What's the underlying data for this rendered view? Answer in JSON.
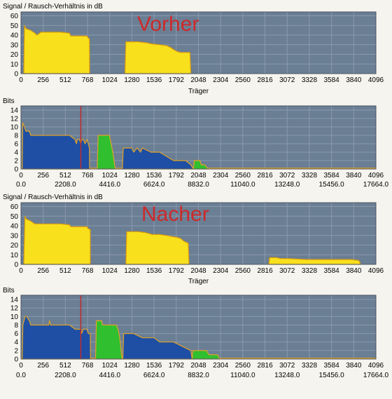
{
  "chart_data": [
    {
      "type": "area",
      "title": "Signal / Rausch-Verhältnis in dB",
      "annotation": "Vorher",
      "xlabel": "Träger",
      "x_ticks": [
        "0",
        "256",
        "512",
        "768",
        "1024",
        "1280",
        "1536",
        "1792",
        "2048",
        "2304",
        "2560",
        "2816",
        "3072",
        "3328",
        "3584",
        "3840",
        "4096"
      ],
      "y_ticks": [
        "0",
        "10",
        "20",
        "30",
        "40",
        "50",
        "60"
      ],
      "xlim": [
        0,
        4096
      ],
      "ylim": [
        0,
        64
      ],
      "series": [
        {
          "points": [
            [
              32,
              0
            ],
            [
              40,
              50
            ],
            [
              55,
              47
            ],
            [
              75,
              46
            ],
            [
              110,
              45
            ],
            [
              160,
              42
            ],
            [
              185,
              40
            ],
            [
              230,
              43
            ],
            [
              330,
              43
            ],
            [
              460,
              43
            ],
            [
              560,
              42
            ],
            [
              575,
              39
            ],
            [
              650,
              39
            ],
            [
              760,
              39
            ],
            [
              776,
              37
            ],
            [
              790,
              36
            ],
            [
              792,
              0
            ]
          ]
        },
        {
          "points": [
            [
              1200,
              0
            ],
            [
              1210,
              33
            ],
            [
              1350,
              33
            ],
            [
              1450,
              32
            ],
            [
              1500,
              31
            ],
            [
              1600,
              30
            ],
            [
              1680,
              29
            ],
            [
              1730,
              27
            ],
            [
              1760,
              25
            ],
            [
              1800,
              23
            ],
            [
              1840,
              22
            ],
            [
              1950,
              22
            ],
            [
              1960,
              0
            ]
          ]
        }
      ],
      "colors": {
        "fill": "#f8e01d",
        "edge": "#d99a0e",
        "plot_bg": "#6a7e94",
        "grid": "#8b9aad"
      },
      "grid": true
    },
    {
      "type": "area",
      "title": "Bits",
      "x_ticks": [
        "0",
        "256",
        "512",
        "768",
        "1024",
        "1280",
        "1536",
        "1792",
        "2048",
        "2304",
        "2560",
        "2816",
        "3072",
        "3328",
        "3584",
        "3840",
        "4096"
      ],
      "x2_ticks": [
        "0.0",
        "2208.0",
        "4416.0",
        "6624.0",
        "8832.0",
        "11040.0",
        "13248.0",
        "15456.0",
        "17664.0"
      ],
      "y_ticks": [
        "0",
        "2",
        "4",
        "6",
        "8",
        "10",
        "12",
        "14"
      ],
      "xlim": [
        0,
        4096
      ],
      "ylim": [
        0,
        15
      ],
      "marker_x": 690,
      "segments": [
        {
          "color": "#1e4fa4",
          "points": [
            [
              14,
              0
            ],
            [
              20,
              11
            ],
            [
              40,
              10
            ],
            [
              56,
              9
            ],
            [
              96,
              9
            ],
            [
              112,
              8
            ],
            [
              224,
              8
            ],
            [
              400,
              8
            ],
            [
              560,
              8
            ],
            [
              624,
              7
            ],
            [
              640,
              6
            ],
            [
              650,
              7
            ],
            [
              675,
              7
            ],
            [
              690,
              6
            ],
            [
              700,
              7
            ],
            [
              720,
              7
            ],
            [
              740,
              6
            ],
            [
              760,
              7
            ],
            [
              776,
              6
            ],
            [
              790,
              5
            ],
            [
              792,
              0
            ]
          ]
        },
        {
          "color": "#2fbf2f",
          "points": [
            [
              880,
              0
            ],
            [
              890,
              8
            ],
            [
              1020,
              8
            ],
            [
              1030,
              7
            ],
            [
              1050,
              5
            ],
            [
              1060,
              4
            ],
            [
              1080,
              1
            ],
            [
              1090,
              0
            ]
          ]
        },
        {
          "color": "#1e4fa4",
          "points": [
            [
              1170,
              0
            ],
            [
              1180,
              5
            ],
            [
              1280,
              5
            ],
            [
              1300,
              4
            ],
            [
              1340,
              5
            ],
            [
              1380,
              4
            ],
            [
              1400,
              5
            ],
            [
              1500,
              4
            ],
            [
              1600,
              4
            ],
            [
              1680,
              3
            ],
            [
              1760,
              2
            ],
            [
              1900,
              2
            ],
            [
              1960,
              1
            ],
            [
              1990,
              0
            ]
          ]
        },
        {
          "color": "#2fbf2f",
          "points": [
            [
              1990,
              0
            ],
            [
              2000,
              2
            ],
            [
              2064,
              2
            ],
            [
              2080,
              1
            ],
            [
              2120,
              1
            ],
            [
              2160,
              0
            ]
          ]
        }
      ],
      "colors": {
        "edge": "#e2a227",
        "marker": "#c02b2b",
        "baseline": "#e2a227",
        "plot_bg": "#6a7e94",
        "grid": "#8b9aad"
      },
      "grid": true
    },
    {
      "type": "area",
      "title": "Signal / Rausch-Verhältnis in dB",
      "annotation": "Nacher",
      "xlabel": "Träger",
      "x_ticks": [
        "0",
        "256",
        "512",
        "768",
        "1024",
        "1280",
        "1536",
        "1792",
        "2048",
        "2304",
        "2560",
        "2816",
        "3072",
        "3328",
        "3584",
        "3840",
        "4096"
      ],
      "y_ticks": [
        "0",
        "10",
        "20",
        "30",
        "40",
        "50",
        "60"
      ],
      "xlim": [
        0,
        4096
      ],
      "ylim": [
        0,
        64
      ],
      "series": [
        {
          "points": [
            [
              32,
              0
            ],
            [
              45,
              50
            ],
            [
              60,
              47
            ],
            [
              110,
              45
            ],
            [
              160,
              42
            ],
            [
              230,
              42
            ],
            [
              460,
              42
            ],
            [
              560,
              41
            ],
            [
              575,
              39
            ],
            [
              700,
              39
            ],
            [
              760,
              39
            ],
            [
              776,
              37
            ],
            [
              800,
              36
            ],
            [
              800,
              0
            ]
          ]
        },
        {
          "points": [
            [
              1210,
              0
            ],
            [
              1220,
              34
            ],
            [
              1350,
              34
            ],
            [
              1430,
              33
            ],
            [
              1520,
              31
            ],
            [
              1600,
              31
            ],
            [
              1680,
              30
            ],
            [
              1730,
              29
            ],
            [
              1800,
              28
            ],
            [
              1840,
              27
            ],
            [
              1880,
              24
            ],
            [
              1930,
              22
            ],
            [
              1940,
              0
            ]
          ]
        },
        {
          "points": [
            [
              2860,
              0
            ],
            [
              2870,
              7
            ],
            [
              2950,
              7
            ],
            [
              3000,
              6
            ],
            [
              3100,
              6
            ],
            [
              3300,
              5
            ],
            [
              3584,
              5
            ],
            [
              3820,
              5
            ],
            [
              3900,
              4
            ],
            [
              3920,
              0
            ]
          ]
        }
      ],
      "colors": {
        "fill": "#f8e01d",
        "edge": "#d99a0e",
        "plot_bg": "#6a7e94",
        "grid": "#8b9aad"
      },
      "grid": true
    },
    {
      "type": "area",
      "title": "Bits",
      "x_ticks": [
        "0",
        "256",
        "512",
        "768",
        "1024",
        "1280",
        "1536",
        "1792",
        "2048",
        "2304",
        "2560",
        "2816",
        "3072",
        "3328",
        "3584",
        "3840",
        "4096"
      ],
      "x2_ticks": [
        "0.0",
        "2208.0",
        "4416.0",
        "6624.0",
        "8832.0",
        "11040.0",
        "13248.0",
        "15456.0",
        "17664.0"
      ],
      "y_ticks": [
        "0",
        "2",
        "4",
        "6",
        "8",
        "10",
        "12",
        "14"
      ],
      "xlim": [
        0,
        4096
      ],
      "ylim": [
        0,
        15
      ],
      "marker_x": 690,
      "segments": [
        {
          "color": "#1e4fa4",
          "points": [
            [
              14,
              0
            ],
            [
              22,
              8
            ],
            [
              48,
              10
            ],
            [
              64,
              10
            ],
            [
              96,
              9
            ],
            [
              112,
              8
            ],
            [
              224,
              8
            ],
            [
              320,
              8
            ],
            [
              330,
              9
            ],
            [
              340,
              8
            ],
            [
              560,
              8
            ],
            [
              624,
              7
            ],
            [
              690,
              7
            ],
            [
              700,
              6
            ],
            [
              720,
              7
            ],
            [
              760,
              7
            ],
            [
              776,
              6
            ],
            [
              800,
              6
            ],
            [
              802,
              0
            ]
          ]
        },
        {
          "color": "#2fbf2f",
          "points": [
            [
              860,
              0
            ],
            [
              870,
              9
            ],
            [
              930,
              9
            ],
            [
              940,
              8
            ],
            [
              1100,
              8
            ],
            [
              1120,
              7
            ],
            [
              1140,
              5
            ],
            [
              1160,
              1
            ],
            [
              1170,
              0
            ]
          ]
        },
        {
          "color": "#1e4fa4",
          "points": [
            [
              1175,
              0
            ],
            [
              1185,
              6
            ],
            [
              1300,
              6
            ],
            [
              1400,
              5
            ],
            [
              1536,
              5
            ],
            [
              1600,
              4
            ],
            [
              1760,
              4
            ],
            [
              1860,
              3
            ],
            [
              1960,
              2
            ],
            [
              1975,
              0
            ]
          ]
        },
        {
          "color": "#2fbf2f",
          "points": [
            [
              1975,
              0
            ],
            [
              1985,
              2
            ],
            [
              2140,
              2
            ],
            [
              2170,
              1
            ],
            [
              2270,
              1
            ],
            [
              2290,
              0
            ]
          ]
        }
      ],
      "colors": {
        "edge": "#e2a227",
        "marker": "#c02b2b",
        "baseline": "#e2a227",
        "plot_bg": "#6a7e94",
        "grid": "#8b9aad"
      },
      "grid": true
    }
  ]
}
